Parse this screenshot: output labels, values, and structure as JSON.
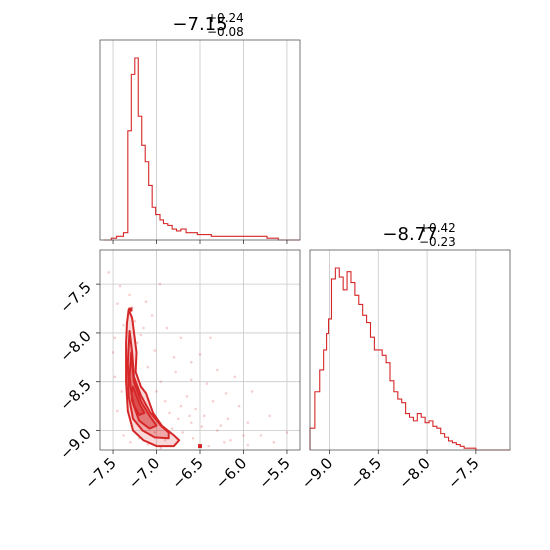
{
  "chart_data": [
    {
      "type": "histogram",
      "panel": "marginal-param1",
      "title": {
        "median": "−7.15",
        "plus": "+0.24",
        "minus": "−0.08"
      },
      "xlim": [
        -7.65,
        -5.35
      ],
      "xticks": [
        -7.5,
        -7.0,
        -6.5,
        -6.0,
        -5.5
      ],
      "color": "#d62728",
      "bins": [
        [
          -7.61,
          0.0
        ],
        [
          -7.52,
          0.01
        ],
        [
          -7.46,
          0.02
        ],
        [
          -7.38,
          0.04
        ],
        [
          -7.33,
          0.6
        ],
        [
          -7.29,
          0.91
        ],
        [
          -7.25,
          1.0
        ],
        [
          -7.21,
          0.68
        ],
        [
          -7.17,
          0.52
        ],
        [
          -7.13,
          0.43
        ],
        [
          -7.09,
          0.3
        ],
        [
          -7.05,
          0.18
        ],
        [
          -7.01,
          0.14
        ],
        [
          -6.96,
          0.11
        ],
        [
          -6.92,
          0.09
        ],
        [
          -6.87,
          0.08
        ],
        [
          -6.82,
          0.06
        ],
        [
          -6.77,
          0.05
        ],
        [
          -6.72,
          0.06
        ],
        [
          -6.66,
          0.04
        ],
        [
          -6.6,
          0.04
        ],
        [
          -6.53,
          0.03
        ],
        [
          -6.46,
          0.03
        ],
        [
          -6.37,
          0.02
        ],
        [
          -6.27,
          0.02
        ],
        [
          -6.16,
          0.02
        ],
        [
          -6.05,
          0.02
        ],
        [
          -5.93,
          0.02
        ],
        [
          -5.83,
          0.02
        ],
        [
          -5.73,
          0.01
        ],
        [
          -5.6,
          0.0
        ]
      ]
    },
    {
      "type": "histogram",
      "panel": "marginal-param2",
      "title": {
        "median": "−8.77",
        "plus": "+0.42",
        "minus": "−0.23"
      },
      "xlim": [
        -9.2,
        -7.15
      ],
      "xticks": [
        -9.0,
        -8.5,
        -8.0,
        -7.5
      ],
      "color": "#d62728",
      "bins": [
        [
          -9.2,
          0.12
        ],
        [
          -9.15,
          0.32
        ],
        [
          -9.1,
          0.44
        ],
        [
          -9.06,
          0.55
        ],
        [
          -9.03,
          0.64
        ],
        [
          -9.01,
          0.72
        ],
        [
          -8.98,
          0.94
        ],
        [
          -8.94,
          1.0
        ],
        [
          -8.9,
          0.95
        ],
        [
          -8.86,
          0.88
        ],
        [
          -8.82,
          0.98
        ],
        [
          -8.78,
          0.92
        ],
        [
          -8.74,
          0.85
        ],
        [
          -8.7,
          0.8
        ],
        [
          -8.66,
          0.74
        ],
        [
          -8.62,
          0.7
        ],
        [
          -8.58,
          0.62
        ],
        [
          -8.54,
          0.55
        ],
        [
          -8.5,
          0.55
        ],
        [
          -8.46,
          0.52
        ],
        [
          -8.42,
          0.48
        ],
        [
          -8.38,
          0.38
        ],
        [
          -8.34,
          0.32
        ],
        [
          -8.3,
          0.28
        ],
        [
          -8.26,
          0.26
        ],
        [
          -8.22,
          0.2
        ],
        [
          -8.18,
          0.18
        ],
        [
          -8.14,
          0.16
        ],
        [
          -8.1,
          0.2
        ],
        [
          -8.06,
          0.18
        ],
        [
          -8.02,
          0.15
        ],
        [
          -7.98,
          0.16
        ],
        [
          -7.94,
          0.13
        ],
        [
          -7.9,
          0.12
        ],
        [
          -7.86,
          0.09
        ],
        [
          -7.82,
          0.07
        ],
        [
          -7.78,
          0.05
        ],
        [
          -7.74,
          0.04
        ],
        [
          -7.7,
          0.03
        ],
        [
          -7.66,
          0.02
        ],
        [
          -7.62,
          0.01
        ],
        [
          -7.58,
          0.01
        ],
        [
          -7.54,
          0.01
        ],
        [
          -7.5,
          0.0
        ],
        [
          -7.15,
          0.0
        ]
      ]
    },
    {
      "type": "scatter",
      "panel": "joint-param1-param2",
      "xlim": [
        -7.65,
        -5.35
      ],
      "ylim": [
        -9.2,
        -7.15
      ],
      "xticks": [
        -7.5,
        -7.0,
        -6.5,
        -6.0,
        -5.5
      ],
      "yticks": [
        -7.5,
        -8.0,
        -8.5,
        -9.0
      ],
      "color": "#d62728",
      "contours": [
        {
          "level": "outer",
          "points": [
            [
              -7.32,
              -7.76
            ],
            [
              -7.28,
              -7.85
            ],
            [
              -7.23,
              -8.2
            ],
            [
              -7.24,
              -8.4
            ],
            [
              -7.18,
              -8.55
            ],
            [
              -7.12,
              -8.62
            ],
            [
              -7.04,
              -8.82
            ],
            [
              -6.94,
              -8.95
            ],
            [
              -6.8,
              -9.05
            ],
            [
              -6.74,
              -9.1
            ],
            [
              -6.8,
              -9.16
            ],
            [
              -7.0,
              -9.16
            ],
            [
              -7.15,
              -9.1
            ],
            [
              -7.27,
              -9.0
            ],
            [
              -7.33,
              -8.8
            ],
            [
              -7.35,
              -8.5
            ],
            [
              -7.35,
              -8.1
            ],
            [
              -7.34,
              -7.9
            ]
          ]
        },
        {
          "level": "mid",
          "points": [
            [
              -7.31,
              -7.98
            ],
            [
              -7.28,
              -8.2
            ],
            [
              -7.26,
              -8.45
            ],
            [
              -7.18,
              -8.64
            ],
            [
              -7.07,
              -8.82
            ],
            [
              -6.95,
              -8.95
            ],
            [
              -6.86,
              -9.02
            ],
            [
              -6.86,
              -9.08
            ],
            [
              -7.02,
              -9.07
            ],
            [
              -7.16,
              -9.0
            ],
            [
              -7.27,
              -8.88
            ],
            [
              -7.32,
              -8.65
            ],
            [
              -7.33,
              -8.3
            ]
          ]
        },
        {
          "level": "inner",
          "points": [
            [
              -7.29,
              -8.2
            ],
            [
              -7.26,
              -8.5
            ],
            [
              -7.18,
              -8.7
            ],
            [
              -7.08,
              -8.85
            ],
            [
              -7.0,
              -8.95
            ],
            [
              -7.08,
              -8.98
            ],
            [
              -7.2,
              -8.9
            ],
            [
              -7.28,
              -8.7
            ],
            [
              -7.31,
              -8.45
            ]
          ]
        },
        {
          "level": "core",
          "points": [
            [
              -7.27,
              -8.55
            ],
            [
              -7.2,
              -8.72
            ],
            [
              -7.14,
              -8.82
            ],
            [
              -7.2,
              -8.84
            ],
            [
              -7.26,
              -8.74
            ],
            [
              -7.29,
              -8.62
            ]
          ]
        }
      ],
      "points": [
        [
          -7.55,
          -7.38
        ],
        [
          -7.42,
          -7.52
        ],
        [
          -7.31,
          -7.61
        ],
        [
          -7.45,
          -7.7
        ],
        [
          -7.28,
          -7.74
        ],
        [
          -7.12,
          -7.68
        ],
        [
          -6.96,
          -7.5
        ],
        [
          -7.05,
          -7.82
        ],
        [
          -6.88,
          -7.95
        ],
        [
          -7.38,
          -7.92
        ],
        [
          -7.48,
          -8.05
        ],
        [
          -7.22,
          -8.1
        ],
        [
          -7.02,
          -8.18
        ],
        [
          -6.72,
          -8.05
        ],
        [
          -6.5,
          -8.22
        ],
        [
          -6.38,
          -8.05
        ],
        [
          -6.3,
          -8.38
        ],
        [
          -6.42,
          -8.52
        ],
        [
          -6.6,
          -8.48
        ],
        [
          -6.78,
          -8.4
        ],
        [
          -6.95,
          -8.5
        ],
        [
          -7.4,
          -8.6
        ],
        [
          -7.45,
          -8.8
        ],
        [
          -7.38,
          -9.05
        ],
        [
          -7.2,
          -9.08
        ],
        [
          -6.9,
          -9.1
        ],
        [
          -6.7,
          -9.02
        ],
        [
          -6.6,
          -8.92
        ],
        [
          -6.48,
          -8.96
        ],
        [
          -6.3,
          -9.0
        ],
        [
          -6.18,
          -8.88
        ],
        [
          -6.05,
          -8.75
        ],
        [
          -5.95,
          -8.92
        ],
        [
          -5.8,
          -9.05
        ],
        [
          -5.65,
          -9.12
        ],
        [
          -5.95,
          -9.15
        ],
        [
          -6.22,
          -9.12
        ],
        [
          -6.4,
          -9.16
        ],
        [
          -6.58,
          -9.08
        ],
        [
          -5.5,
          -9.02
        ],
        [
          -5.9,
          -8.6
        ],
        [
          -6.1,
          -8.45
        ],
        [
          -6.9,
          -8.7
        ],
        [
          -7.0,
          -8.6
        ],
        [
          -6.85,
          -8.82
        ],
        [
          -6.72,
          -8.75
        ],
        [
          -7.1,
          -8.35
        ],
        [
          -7.35,
          -8.3
        ],
        [
          -7.5,
          -8.2
        ],
        [
          -7.15,
          -7.95
        ],
        [
          -6.65,
          -8.65
        ],
        [
          -6.55,
          -8.78
        ],
        [
          -6.35,
          -8.7
        ],
        [
          -6.2,
          -8.62
        ],
        [
          -7.3,
          -9.12
        ],
        [
          -7.1,
          -9.14
        ],
        [
          -6.95,
          -9.18
        ],
        [
          -6.82,
          -8.98
        ],
        [
          -6.75,
          -8.88
        ],
        [
          -6.62,
          -8.85
        ],
        [
          -7.25,
          -7.88
        ],
        [
          -7.18,
          -8.02
        ],
        [
          -6.8,
          -8.25
        ],
        [
          -6.6,
          -8.3
        ],
        [
          -5.7,
          -8.85
        ],
        [
          -6.0,
          -9.05
        ],
        [
          -7.48,
          -8.45
        ],
        [
          -7.02,
          -9.02
        ],
        [
          -6.45,
          -8.85
        ],
        [
          -6.26,
          -8.95
        ],
        [
          -6.15,
          -9.1
        ]
      ],
      "marker_points": [
        [
          -7.3,
          -7.76
        ],
        [
          -6.5,
          -9.16
        ]
      ]
    }
  ]
}
